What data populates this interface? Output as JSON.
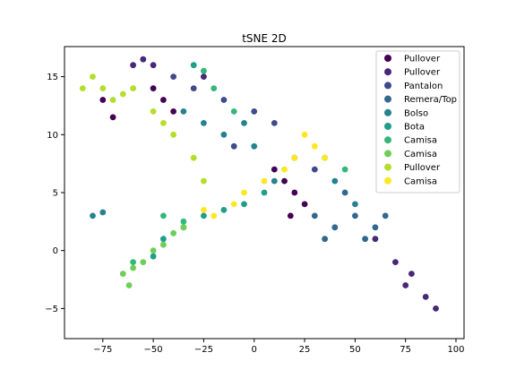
{
  "chart_data": {
    "type": "scatter",
    "title": "tSNE 2D",
    "xlabel": "",
    "ylabel": "",
    "xlim": [
      -94,
      104
    ],
    "ylim": [
      -7.6,
      17.6
    ],
    "xticks": [
      -75,
      -50,
      -25,
      0,
      25,
      50,
      75,
      100
    ],
    "xtick_labels": [
      "−75",
      "−50",
      "−25",
      "0",
      "25",
      "50",
      "75",
      "100"
    ],
    "yticks": [
      -5,
      0,
      5,
      10,
      15
    ],
    "ytick_labels": [
      "−5",
      "0",
      "5",
      "10",
      "15"
    ],
    "grid": false,
    "legend_position": "top-right",
    "series": [
      {
        "name": "Pullover",
        "color": "#440154",
        "points": [
          [
            15,
            6
          ],
          [
            20,
            5
          ],
          [
            25,
            4
          ],
          [
            10,
            7
          ],
          [
            18,
            3
          ],
          [
            -70,
            11.5
          ],
          [
            -75,
            13
          ],
          [
            -50,
            14
          ],
          [
            -45,
            13
          ],
          [
            -40,
            12
          ]
        ]
      },
      {
        "name": "Pullover",
        "color": "#482878",
        "points": [
          [
            78,
            -2
          ],
          [
            85,
            -4
          ],
          [
            70,
            -1
          ],
          [
            90,
            -5
          ],
          [
            75,
            -3
          ],
          [
            60,
            1
          ],
          [
            -60,
            16
          ],
          [
            -55,
            16.5
          ],
          [
            -50,
            16
          ],
          [
            -25,
            15
          ]
        ]
      },
      {
        "name": "Pantalon",
        "color": "#3e4a89",
        "points": [
          [
            -40,
            15
          ],
          [
            -30,
            14
          ],
          [
            -15,
            13
          ],
          [
            0,
            12
          ],
          [
            10,
            11
          ],
          [
            20,
            8
          ],
          [
            30,
            7
          ],
          [
            -10,
            9
          ]
        ]
      },
      {
        "name": "Remera/Top",
        "color": "#31688e",
        "points": [
          [
            30,
            3
          ],
          [
            40,
            2
          ],
          [
            50,
            3
          ],
          [
            55,
            1
          ],
          [
            60,
            2
          ],
          [
            45,
            5
          ],
          [
            35,
            1
          ],
          [
            65,
            3
          ]
        ]
      },
      {
        "name": "Bolso",
        "color": "#26828e",
        "points": [
          [
            -25,
            11
          ],
          [
            -15,
            10
          ],
          [
            0,
            9
          ],
          [
            10,
            6
          ],
          [
            40,
            6
          ],
          [
            50,
            4
          ],
          [
            -35,
            12
          ],
          [
            -5,
            11
          ],
          [
            -80,
            3
          ],
          [
            -75,
            3.3
          ]
        ]
      },
      {
        "name": "Bota",
        "color": "#1f9e89",
        "points": [
          [
            -45,
            1
          ],
          [
            -35,
            2
          ],
          [
            -25,
            3
          ],
          [
            -15,
            3.5
          ],
          [
            -5,
            4
          ],
          [
            5,
            5
          ],
          [
            -50,
            -0.5
          ],
          [
            -30,
            16
          ]
        ]
      },
      {
        "name": "Camisa",
        "color": "#35b779",
        "points": [
          [
            -25,
            15.5
          ],
          [
            -20,
            14
          ],
          [
            -10,
            12
          ],
          [
            -45,
            3
          ],
          [
            -35,
            2.5
          ],
          [
            35,
            8
          ],
          [
            45,
            7
          ],
          [
            -60,
            -1
          ]
        ]
      },
      {
        "name": "Camisa",
        "color": "#6ece58",
        "points": [
          [
            -65,
            -2
          ],
          [
            -60,
            -1.5
          ],
          [
            -55,
            -1
          ],
          [
            -50,
            0
          ],
          [
            -45,
            0.5
          ],
          [
            -40,
            1.5
          ],
          [
            -35,
            2
          ],
          [
            -62,
            -3
          ]
        ]
      },
      {
        "name": "Pullover",
        "color": "#b5de2b",
        "points": [
          [
            -85,
            14
          ],
          [
            -80,
            15
          ],
          [
            -75,
            14
          ],
          [
            -70,
            13
          ],
          [
            -65,
            13.5
          ],
          [
            -60,
            14
          ],
          [
            -50,
            12
          ],
          [
            -45,
            11
          ],
          [
            -40,
            10
          ],
          [
            -30,
            8
          ],
          [
            -25,
            6
          ]
        ]
      },
      {
        "name": "Camisa",
        "color": "#fde725",
        "points": [
          [
            25,
            10
          ],
          [
            30,
            9
          ],
          [
            35,
            8
          ],
          [
            20,
            8
          ],
          [
            15,
            7
          ],
          [
            5,
            6
          ],
          [
            -5,
            5
          ],
          [
            -10,
            4
          ],
          [
            -20,
            3
          ],
          [
            -25,
            3.5
          ]
        ]
      }
    ]
  }
}
